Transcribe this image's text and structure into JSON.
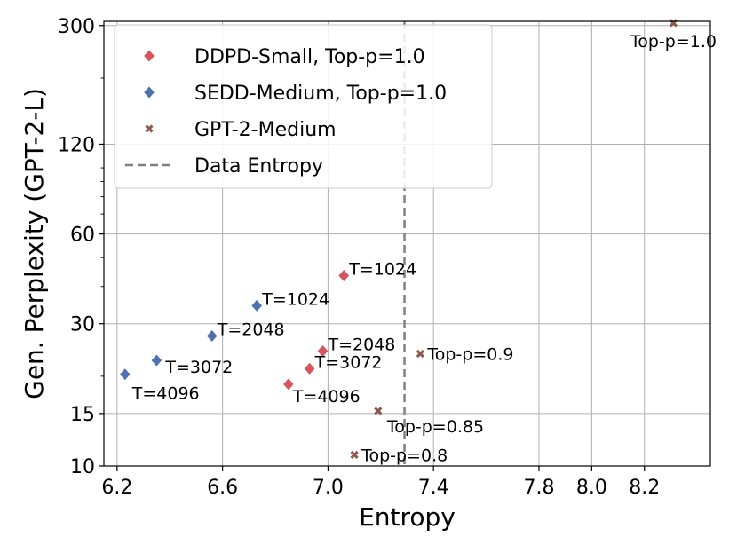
{
  "chart_data": {
    "type": "scatter",
    "xlabel": "Entropy",
    "ylabel": "Gen. Perplexity (GPT-2-L)",
    "xlim": [
      6.15,
      8.45
    ],
    "ylim": [
      10,
      310
    ],
    "yscale": "log",
    "xticks": [
      {
        "value": 6.2,
        "label": "6.2"
      },
      {
        "value": 6.6,
        "label": "6.6"
      },
      {
        "value": 7.0,
        "label": "7.0"
      },
      {
        "value": 7.4,
        "label": "7.4"
      },
      {
        "value": 7.8,
        "label": "7.8"
      },
      {
        "value": 8.0,
        "label": "8.0"
      },
      {
        "value": 8.2,
        "label": "8.2"
      }
    ],
    "yticks": [
      {
        "value": 10,
        "label": "10"
      },
      {
        "value": 15,
        "label": "15"
      },
      {
        "value": 30,
        "label": "30"
      },
      {
        "value": 60,
        "label": "60"
      },
      {
        "value": 120,
        "label": "120"
      },
      {
        "value": 300,
        "label": "300"
      }
    ],
    "grid": true,
    "legend_position": "top-left",
    "series": [
      {
        "name": "DDPD-Small, Top-p=1.0",
        "marker": "diamond",
        "color": "#d9535d",
        "points": [
          {
            "x": 7.06,
            "y": 43.5,
            "label": "T=1024"
          },
          {
            "x": 6.98,
            "y": 24.3,
            "label": "T=2048"
          },
          {
            "x": 6.93,
            "y": 21.2,
            "label": "T=3072"
          },
          {
            "x": 6.85,
            "y": 18.8,
            "label": "T=4096"
          }
        ]
      },
      {
        "name": "SEDD-Medium, Top-p=1.0",
        "marker": "diamond",
        "color": "#4c72b0",
        "points": [
          {
            "x": 6.73,
            "y": 34.5,
            "label": "T=1024"
          },
          {
            "x": 6.56,
            "y": 27.3,
            "label": "T=2048"
          },
          {
            "x": 6.35,
            "y": 22.6,
            "label": "T=3072"
          },
          {
            "x": 6.23,
            "y": 20.3,
            "label": "T=4096"
          }
        ]
      },
      {
        "name": "GPT-2-Medium",
        "marker": "x",
        "color": "#8c5a4e",
        "points": [
          {
            "x": 8.31,
            "y": 306,
            "label": "Top-p=1.0"
          },
          {
            "x": 7.35,
            "y": 23.8,
            "label": "Top-p=0.9"
          },
          {
            "x": 7.19,
            "y": 15.3,
            "label": "Top-p=0.85"
          },
          {
            "x": 7.1,
            "y": 10.9,
            "label": "Top-p=0.8"
          }
        ]
      }
    ],
    "reference_lines": [
      {
        "name": "Data Entropy",
        "axis": "x",
        "value": 7.29,
        "style": "dashed",
        "color": "#808080"
      }
    ]
  }
}
